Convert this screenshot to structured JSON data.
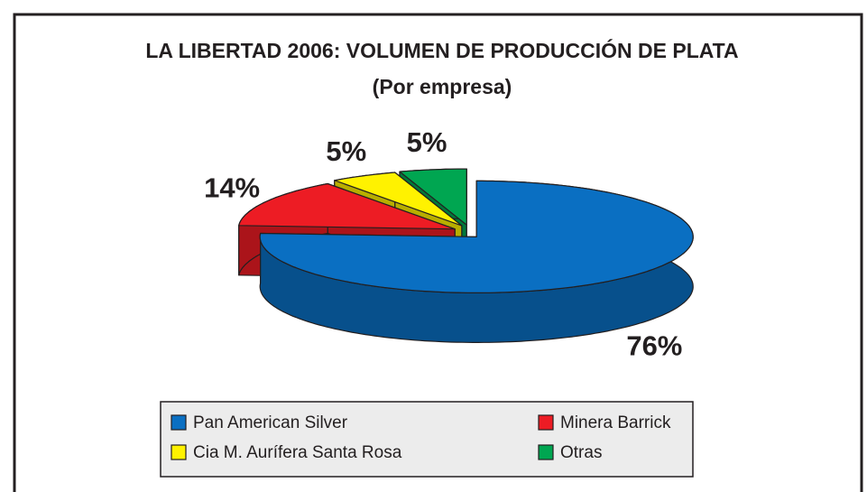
{
  "chart_data": {
    "type": "pie3d",
    "title": "LA LIBERTAD 2006: VOLUMEN DE PRODUCCIÓN DE PLATA (Por empresa)",
    "categories": [
      "Pan American Silver",
      "Minera Barrick",
      "Cia M. Aurífera Santa Rosa",
      "Otras"
    ],
    "values": [
      76,
      14,
      5,
      5
    ],
    "value_labels": [
      "76%",
      "14%",
      "5%",
      "5%"
    ],
    "colors": [
      "#0a6fc2",
      "#ed1c24",
      "#fff200",
      "#00a651"
    ],
    "legend": "bottom"
  }
}
